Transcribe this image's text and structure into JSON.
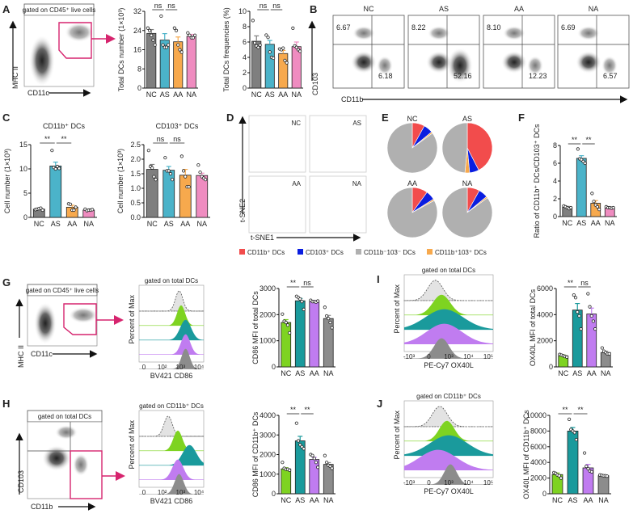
{
  "colors": {
    "NC_main": "#7f7f7f",
    "AS_main": "#4bb3c9",
    "AA_main": "#f7a94d",
    "NA_main": "#ef8cc0",
    "green": "#7ed321",
    "teal": "#1a9a9c",
    "purple": "#c07cf0",
    "gray": "#8c8c8c",
    "magenta": "#d6246e",
    "pie_red": "#f24c4c",
    "pie_blue": "#0a1de0",
    "pie_gray": "#b0b0b0",
    "pie_orange": "#f7a94d"
  },
  "panel_labels": [
    "A",
    "B",
    "C",
    "D",
    "E",
    "F",
    "G",
    "H",
    "I",
    "J"
  ],
  "panelA": {
    "gate_label": "gated on CD45⁺ live cells",
    "x_axis": "CD11c",
    "y_axis": "MHC II"
  },
  "panelB": {
    "groups": [
      "NC",
      "AS",
      "AA",
      "NA"
    ],
    "upper_left": [
      "6.67",
      "8.22",
      "8.10",
      "6.69"
    ],
    "lower_right": [
      "6.18",
      "52.16",
      "12.23",
      "6.57"
    ],
    "x_axis": "CD11b",
    "y_axis": "CD103"
  },
  "panelD": {
    "groups": [
      "NC",
      "AS",
      "AA",
      "NA"
    ],
    "x_axis": "t-SNE1",
    "y_axis": "t-SNE2"
  },
  "panelE": {
    "legend": [
      "CD11b⁺ DCs",
      "CD103⁺ DCs",
      "CD11b⁻103⁻ DCs",
      "CD11b⁺103⁺ DCs"
    ]
  },
  "panelG": {
    "gate_label": "gated on CD45⁺ live cells",
    "x_axis": "CD11c",
    "y_axis": "MHC II",
    "hist_title": "gated on total DCs",
    "hist_x": "BV421 CD86",
    "hist_y": "Percent of Max",
    "hist_ticks": [
      "0",
      "10²",
      "10³",
      "10⁴"
    ]
  },
  "panelH": {
    "gate_label": "gated on total  DCs",
    "x_axis": "CD11b",
    "y_axis": "CD103",
    "hist_title": "gated on CD11b⁺ DCs",
    "hist_x": "BV421 CD86",
    "hist_y": "Percent of Max",
    "hist_ticks": [
      "0",
      "10²",
      "10³",
      "10⁴"
    ]
  },
  "panelI": {
    "hist_title": "gated on total DCs",
    "hist_x": "PE-Cy7 OX40L",
    "hist_y": "Percent of Max",
    "hist_ticks": [
      "-10³",
      "0",
      "10³",
      "10⁴",
      "10⁵"
    ]
  },
  "panelJ": {
    "hist_title": "gated on CD11b⁺ DCs",
    "hist_x": "PE-Cy7 OX40L",
    "hist_y": "Percent of Max",
    "hist_ticks": [
      "-10³",
      "0",
      "10³",
      "10⁴",
      "10⁵"
    ]
  },
  "chart_data": [
    {
      "id": "A1",
      "type": "bar",
      "title": "",
      "categories": [
        "NC",
        "AS",
        "AA",
        "NA"
      ],
      "values": [
        22.8,
        20.0,
        19.3,
        21.6
      ],
      "errors": [
        1.6,
        2.7,
        2.0,
        0.8
      ],
      "ylabel": "Total DCs number (1×10³)",
      "ylim": [
        0,
        32
      ],
      "yticks": [
        0,
        8,
        16,
        24,
        32
      ],
      "points": [
        [
          25,
          24,
          22,
          20,
          18
        ],
        [
          30,
          18,
          17,
          17,
          18
        ],
        [
          25,
          24,
          18,
          16,
          15
        ],
        [
          23,
          22,
          21,
          21,
          22
        ]
      ],
      "significance": [
        {
          "from": 0,
          "to": 1,
          "label": "ns"
        },
        {
          "from": 1,
          "to": 2,
          "label": "ns"
        }
      ],
      "palette": "main"
    },
    {
      "id": "A2",
      "type": "bar",
      "title": "",
      "categories": [
        "NC",
        "AS",
        "AA",
        "NA"
      ],
      "values": [
        6.1,
        5.7,
        4.5,
        5.4
      ],
      "errors": [
        0.7,
        0.5,
        0.4,
        0.6
      ],
      "ylabel": "Total DCs frequencies (%)",
      "ylim": [
        0,
        10
      ],
      "yticks": [
        0,
        2,
        4,
        6,
        8,
        10
      ],
      "points": [
        [
          8.8,
          5.9,
          5.5,
          5.3,
          5.6
        ],
        [
          6.9,
          6.6,
          4.7,
          4.0,
          3.9
        ],
        [
          5.1,
          5.0,
          5.2,
          3.6,
          3.3
        ],
        [
          7.8,
          5.5,
          5.3,
          5.0,
          4.8
        ]
      ],
      "significance": [
        {
          "from": 0,
          "to": 1,
          "label": "ns"
        },
        {
          "from": 1,
          "to": 2,
          "label": "ns"
        }
      ],
      "palette": "main"
    },
    {
      "id": "C1",
      "type": "bar",
      "title": "CD11b⁺ DCs",
      "categories": [
        "NC",
        "AS",
        "AA",
        "NA"
      ],
      "values": [
        1.7,
        10.6,
        2.1,
        1.5
      ],
      "errors": [
        0.15,
        0.8,
        0.4,
        0.1
      ],
      "ylabel": "Cell number (1×10³)",
      "ylim": [
        0,
        15
      ],
      "yticks": [
        0,
        5,
        10,
        15
      ],
      "points": [
        [
          1.6,
          1.7,
          1.8,
          1.9,
          1.5
        ],
        [
          13.8,
          10.3,
          10.0,
          10.5,
          10.1
        ],
        [
          2.8,
          2.7,
          1.5,
          1.5,
          2.1
        ],
        [
          1.7,
          1.4,
          1.5,
          1.5,
          1.6
        ]
      ],
      "significance": [
        {
          "from": 0,
          "to": 1,
          "label": "**"
        },
        {
          "from": 1,
          "to": 2,
          "label": "**"
        }
      ],
      "palette": "main"
    },
    {
      "id": "C2",
      "type": "bar",
      "title": "CD103⁺ DCs",
      "categories": [
        "NC",
        "AS",
        "AA",
        "NA"
      ],
      "values": [
        1.65,
        1.62,
        1.45,
        1.44
      ],
      "errors": [
        0.17,
        0.13,
        0.2,
        0.08
      ],
      "ylabel": "Cell number (1×10³)",
      "ylim": [
        0,
        2.5
      ],
      "yticks": [
        0,
        0.5,
        1.0,
        1.5,
        2.0,
        2.5
      ],
      "points": [
        [
          2.3,
          1.75,
          1.7,
          1.4,
          1.3
        ],
        [
          2.05,
          1.6,
          1.6,
          1.5,
          1.3
        ],
        [
          2.1,
          1.6,
          1.4,
          1.05,
          1.05
        ],
        [
          1.8,
          1.55,
          1.4,
          1.35,
          1.3
        ]
      ],
      "significance": [
        {
          "from": 0,
          "to": 1,
          "label": "ns"
        },
        {
          "from": 1,
          "to": 2,
          "label": "ns"
        }
      ],
      "palette": "main"
    },
    {
      "id": "E",
      "type": "pie",
      "title": "",
      "groups": [
        "NC",
        "AS",
        "AA",
        "NA"
      ],
      "labels": [
        "CD11b⁺ DCs",
        "CD103⁺ DCs",
        "CD11b⁻103⁻ DCs",
        "CD11b⁺103⁺ DCs"
      ],
      "series": [
        {
          "name": "NC",
          "values": [
            8,
            6,
            85,
            1
          ]
        },
        {
          "name": "AS",
          "values": [
            42,
            6,
            48,
            3
          ]
        },
        {
          "name": "AA",
          "values": [
            10,
            6,
            83,
            1
          ]
        },
        {
          "name": "NA",
          "values": [
            8,
            6,
            85,
            1
          ]
        }
      ]
    },
    {
      "id": "F",
      "type": "bar",
      "title": "",
      "categories": [
        "NC",
        "AS",
        "AA",
        "NA"
      ],
      "values": [
        1.05,
        6.55,
        1.5,
        1.0
      ],
      "errors": [
        0.1,
        0.3,
        0.3,
        0.05
      ],
      "ylabel": "Ratio of CD11b⁺ DCs/CD103⁺ DCs",
      "ylim": [
        0,
        8
      ],
      "yticks": [
        0,
        2,
        4,
        6,
        8
      ],
      "points": [
        [
          1.2,
          1.1,
          1.0,
          0.9,
          1.0
        ],
        [
          7.6,
          6.5,
          6.4,
          6.2,
          6.0
        ],
        [
          2.6,
          1.7,
          1.3,
          1.1,
          0.8
        ],
        [
          1.1,
          1.0,
          1.0,
          0.95,
          1.0
        ]
      ],
      "significance": [
        {
          "from": 0,
          "to": 1,
          "label": "**"
        },
        {
          "from": 1,
          "to": 2,
          "label": "**"
        }
      ],
      "palette": "main"
    },
    {
      "id": "G",
      "type": "bar",
      "title": "",
      "categories": [
        "NC",
        "AS",
        "AA",
        "NA"
      ],
      "values": [
        1700,
        2530,
        2500,
        1850
      ],
      "errors": [
        110,
        90,
        40,
        120
      ],
      "ylabel": "CD86 MFI of total DCs",
      "ylim": [
        0,
        3000
      ],
      "yticks": [
        0,
        1000,
        2000,
        3000
      ],
      "points": [
        [
          2020,
          1750,
          1700,
          1600,
          1300
        ],
        [
          2700,
          2650,
          2600,
          2500,
          2200
        ],
        [
          2550,
          2500,
          2500,
          2480,
          2520
        ],
        [
          2280,
          1950,
          1850,
          1700,
          1500
        ]
      ],
      "significance": [
        {
          "from": 0,
          "to": 1,
          "label": "**"
        },
        {
          "from": 1,
          "to": 2,
          "label": "ns"
        }
      ],
      "palette": "alt"
    },
    {
      "id": "H",
      "type": "bar",
      "title": "",
      "categories": [
        "NC",
        "AS",
        "AA",
        "NA"
      ],
      "values": [
        1270,
        2700,
        1750,
        1500
      ],
      "errors": [
        60,
        230,
        110,
        90
      ],
      "ylabel": "CD86 MFI of CD11b⁺ DCs",
      "ylim": [
        0,
        4000
      ],
      "yticks": [
        0,
        1000,
        2000,
        3000,
        4000
      ],
      "points": [
        [
          1600,
          1300,
          1250,
          1250,
          1200
        ],
        [
          3600,
          2700,
          2500,
          2400,
          2300
        ],
        [
          2000,
          1950,
          1800,
          1600,
          1350
        ],
        [
          1950,
          1600,
          1450,
          1400,
          1300
        ]
      ],
      "significance": [
        {
          "from": 0,
          "to": 1,
          "label": "**"
        },
        {
          "from": 1,
          "to": 2,
          "label": "**"
        }
      ],
      "palette": "alt"
    },
    {
      "id": "I",
      "type": "bar",
      "title": "",
      "categories": [
        "NC",
        "AS",
        "AA",
        "NA"
      ],
      "values": [
        850,
        4350,
        4050,
        1100
      ],
      "errors": [
        60,
        500,
        450,
        100
      ],
      "ylabel": "OX40L MFI of total DCs",
      "ylim": [
        0,
        6000
      ],
      "yticks": [
        0,
        2000,
        4000,
        6000
      ],
      "points": [
        [
          950,
          900,
          850,
          800,
          750
        ],
        [
          5500,
          5300,
          4200,
          3900,
          2900
        ],
        [
          5600,
          4600,
          3900,
          3500,
          2900
        ],
        [
          1450,
          1200,
          1100,
          1000,
          1000
        ]
      ],
      "significance": [
        {
          "from": 0,
          "to": 1,
          "label": "**"
        },
        {
          "from": 1,
          "to": 2,
          "label": "ns"
        }
      ],
      "palette": "alt"
    },
    {
      "id": "J",
      "type": "bar",
      "title": "",
      "categories": [
        "NC",
        "AS",
        "AA",
        "NA"
      ],
      "values": [
        2450,
        8000,
        3300,
        2300
      ],
      "errors": [
        200,
        450,
        450,
        60
      ],
      "ylabel": "OX40L MFI of CD11b⁺ DCs",
      "ylim": [
        0,
        10000
      ],
      "yticks": [
        0,
        2000,
        4000,
        6000,
        8000,
        10000
      ],
      "points": [
        [
          2700,
          2600,
          2400,
          2300,
          2000
        ],
        [
          9500,
          8200,
          8000,
          7800,
          6900
        ],
        [
          5200,
          3500,
          3200,
          2900,
          2800
        ],
        [
          2400,
          2350,
          2300,
          2300,
          2250
        ]
      ],
      "significance": [
        {
          "from": 0,
          "to": 1,
          "label": "**"
        },
        {
          "from": 1,
          "to": 2,
          "label": "**"
        }
      ],
      "palette": "alt"
    }
  ]
}
